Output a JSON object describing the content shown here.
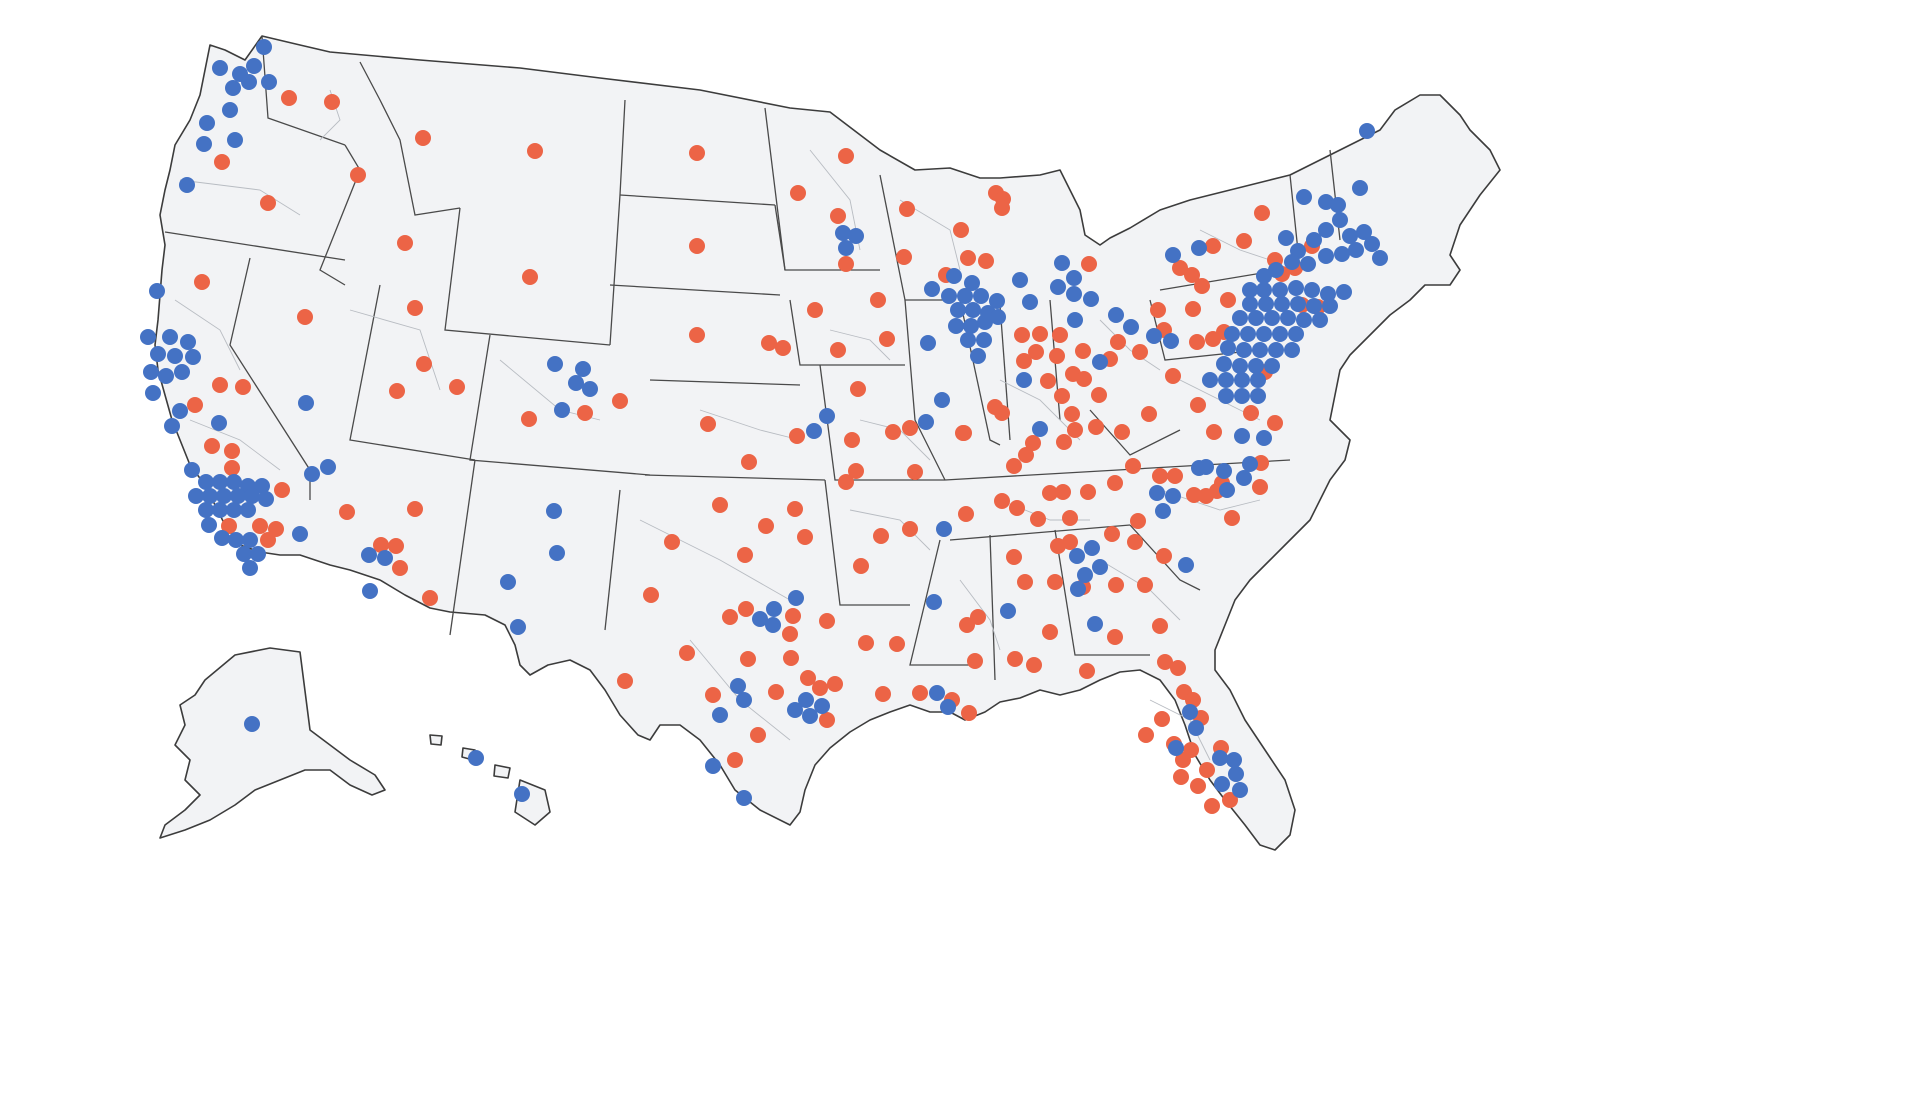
{
  "map": {
    "type": "district-dot-map",
    "colors": {
      "dem": "#4472c4",
      "rep": "#ec6446",
      "land": "#f2f3f5",
      "border": "#3c3c3c"
    }
  }
}
